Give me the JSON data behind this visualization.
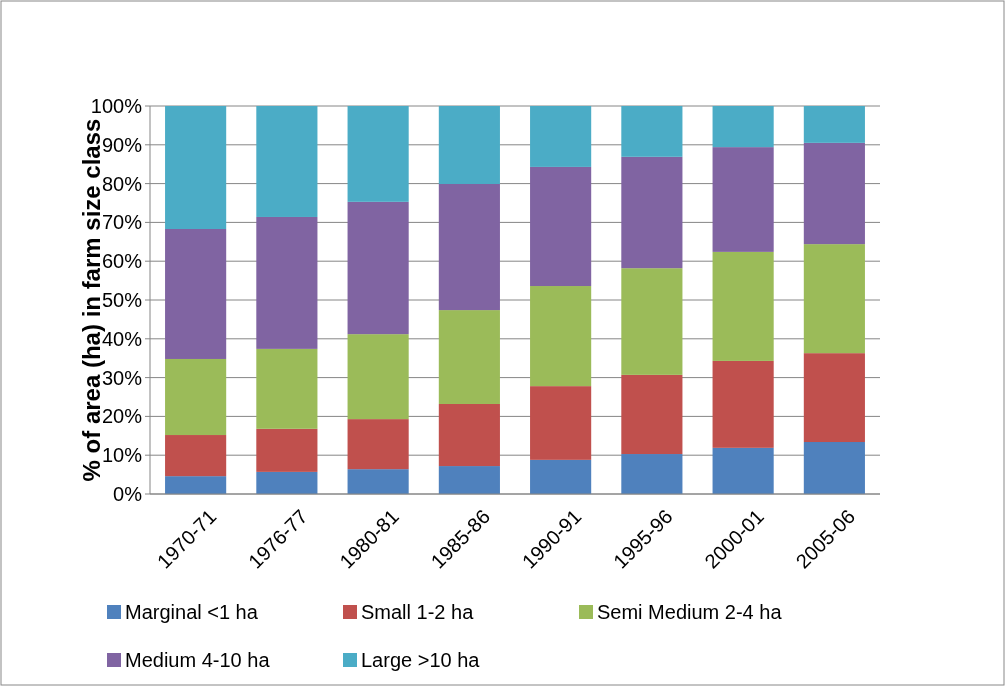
{
  "chart_data": {
    "type": "bar",
    "stacked": true,
    "ylabel": "% of area (ha) in farm size class",
    "categories": [
      "1970-71",
      "1976-77",
      "1980-81",
      "1985-86",
      "1990-91",
      "1995-96",
      "2000-01",
      "2005-06"
    ],
    "series": [
      {
        "name": "Marginal <1 ha",
        "color": "#4f81bd",
        "values": [
          4.6,
          5.7,
          6.4,
          7.2,
          8.8,
          10.3,
          11.9,
          13.4
        ]
      },
      {
        "name": "Small 1-2 ha",
        "color": "#c0504d",
        "values": [
          10.6,
          11.1,
          12.9,
          16.0,
          19.0,
          20.4,
          22.4,
          22.9
        ]
      },
      {
        "name": "Semi Medium 2-4 ha",
        "color": "#9bbb59",
        "values": [
          19.6,
          20.6,
          21.9,
          24.2,
          25.8,
          27.5,
          28.1,
          28.1
        ]
      },
      {
        "name": "Medium 4-10 ha",
        "color": "#8064a2",
        "values": [
          33.5,
          34.0,
          34.1,
          32.5,
          30.7,
          28.7,
          27.0,
          26.1
        ]
      },
      {
        "name": "Large >10 ha",
        "color": "#4bacc6",
        "values": [
          31.7,
          28.6,
          24.7,
          20.1,
          15.7,
          13.1,
          10.6,
          9.5
        ]
      }
    ],
    "ylim": [
      0,
      100
    ],
    "yticks": [
      {
        "value": 0,
        "label": "0%"
      },
      {
        "value": 10,
        "label": "10%"
      },
      {
        "value": 20,
        "label": "20%"
      },
      {
        "value": 30,
        "label": "30%"
      },
      {
        "value": 40,
        "label": "40%"
      },
      {
        "value": 50,
        "label": "50%"
      },
      {
        "value": 60,
        "label": "60%"
      },
      {
        "value": 70,
        "label": "70%"
      },
      {
        "value": 80,
        "label": "80%"
      },
      {
        "value": 90,
        "label": "90%"
      },
      {
        "value": 100,
        "label": "100%"
      }
    ],
    "grid": "y",
    "legend": "bottom"
  }
}
